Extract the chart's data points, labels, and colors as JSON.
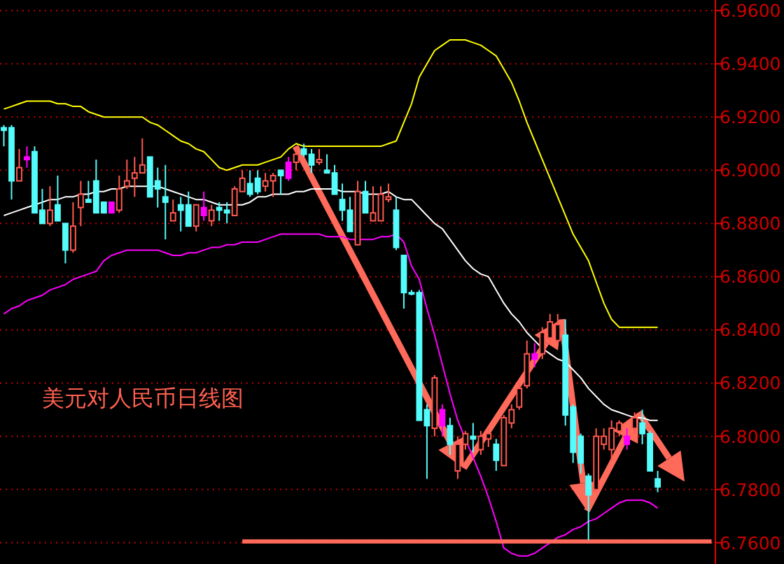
{
  "chart_data": {
    "type": "candlestick",
    "annotations": [
      "美元对人民币日线图"
    ],
    "categories": [
      null,
      null,
      null,
      null,
      null,
      null,
      null,
      null,
      null,
      null,
      null,
      null,
      null,
      null,
      null,
      null,
      null,
      null,
      null,
      null,
      null,
      null,
      null,
      null,
      null,
      null,
      null,
      null,
      null,
      null,
      null,
      null,
      null,
      null,
      null,
      null,
      null,
      null,
      null,
      null,
      null,
      null,
      null,
      null,
      null,
      null,
      null,
      null,
      null,
      null,
      null,
      null,
      null,
      null,
      null,
      null,
      null,
      null,
      null,
      null,
      null,
      null,
      null,
      null,
      null,
      null,
      null,
      null,
      null,
      null,
      null,
      null,
      null,
      null,
      null,
      null,
      null,
      null,
      null,
      null,
      null,
      null,
      null,
      null,
      null,
      null,
      null,
      null,
      null,
      null,
      null,
      null,
      null
    ],
    "ohlc": [
      [
        6.916,
        6.917,
        6.909,
        6.915
      ],
      [
        6.916,
        6.917,
        6.889,
        6.896
      ],
      [
        6.896,
        6.908,
        6.896,
        6.901
      ],
      [
        6.905,
        6.909,
        6.901,
        6.904
      ],
      [
        6.907,
        6.909,
        6.884,
        6.884
      ],
      [
        6.885,
        6.893,
        6.88,
        6.88
      ],
      [
        6.88,
        6.894,
        6.879,
        6.885
      ],
      [
        6.887,
        6.898,
        6.881,
        6.881
      ],
      [
        6.88,
        6.88,
        6.865,
        6.87
      ],
      [
        6.87,
        6.888,
        6.869,
        6.879
      ],
      [
        6.886,
        6.896,
        6.879,
        6.891
      ],
      [
        6.889,
        6.896,
        6.888,
        6.888
      ],
      [
        6.896,
        6.904,
        6.884,
        6.884
      ],
      [
        6.888,
        6.888,
        6.884,
        6.884
      ],
      [
        6.888,
        6.888,
        6.884,
        6.884
      ],
      [
        6.885,
        6.898,
        6.884,
        6.893
      ],
      [
        6.894,
        6.904,
        6.893,
        6.896
      ],
      [
        6.897,
        6.905,
        6.89,
        6.899
      ],
      [
        6.899,
        6.912,
        6.899,
        6.902
      ],
      [
        6.905,
        6.905,
        6.89,
        6.89
      ],
      [
        6.896,
        6.901,
        6.886,
        6.893
      ],
      [
        6.89,
        6.902,
        6.874,
        6.888
      ],
      [
        6.881,
        6.889,
        6.881,
        6.884
      ],
      [
        6.887,
        6.89,
        6.877,
        6.885
      ],
      [
        6.887,
        6.892,
        6.879,
        6.879
      ],
      [
        6.879,
        6.887,
        6.877,
        6.887
      ],
      [
        6.886,
        6.892,
        6.881,
        6.883
      ],
      [
        6.881,
        6.887,
        6.879,
        6.885
      ],
      [
        6.886,
        6.888,
        6.881,
        6.885
      ],
      [
        6.885,
        6.888,
        6.88,
        6.884
      ],
      [
        6.883,
        6.894,
        6.883,
        6.893
      ],
      [
        6.892,
        6.9,
        6.892,
        6.897
      ],
      [
        6.895,
        6.9,
        6.89,
        6.891
      ],
      [
        6.897,
        6.9,
        6.891,
        6.892
      ],
      [
        6.894,
        6.899,
        6.892,
        6.896
      ],
      [
        6.896,
        6.899,
        6.89,
        6.898
      ],
      [
        6.9,
        6.9,
        6.891,
        6.898
      ],
      [
        6.903,
        6.905,
        6.896,
        6.897
      ],
      [
        6.903,
        6.908,
        6.9,
        6.906
      ],
      [
        6.908,
        6.91,
        6.905,
        6.906
      ],
      [
        6.906,
        6.908,
        6.899,
        6.902
      ],
      [
        6.903,
        6.908,
        6.902,
        6.904
      ],
      [
        6.9,
        6.906,
        6.899,
        6.899
      ],
      [
        6.899,
        6.902,
        6.891,
        6.891
      ],
      [
        6.889,
        6.895,
        6.881,
        6.885
      ],
      [
        6.885,
        6.89,
        6.877,
        6.877
      ],
      [
        6.872,
        6.896,
        6.872,
        6.892
      ],
      [
        6.892,
        6.896,
        6.884,
        6.884
      ],
      [
        6.881,
        6.894,
        6.881,
        6.884
      ],
      [
        6.881,
        6.894,
        6.881,
        6.891
      ],
      [
        6.889,
        6.895,
        6.888,
        6.89
      ],
      [
        6.885,
        6.89,
        6.87,
        6.871
      ],
      [
        6.868,
        6.868,
        6.848,
        6.854
      ],
      [
        6.854,
        6.855,
        6.853,
        6.854
      ],
      [
        6.854,
        6.855,
        6.806,
        6.806
      ],
      [
        6.81,
        6.812,
        6.784,
        6.804
      ],
      [
        6.803,
        6.823,
        6.8,
        6.822
      ],
      [
        6.81,
        6.812,
        6.8,
        6.804
      ],
      [
        6.804,
        6.807,
        6.793,
        6.797
      ],
      [
        6.787,
        6.8,
        6.784,
        6.797
      ],
      [
        6.797,
        6.802,
        6.795,
        6.801
      ],
      [
        6.8,
        6.805,
        6.794,
        6.799
      ],
      [
        6.795,
        6.802,
        6.793,
        6.8
      ],
      [
        6.799,
        6.803,
        6.796,
        6.801
      ],
      [
        6.797,
        6.799,
        6.787,
        6.791
      ],
      [
        6.789,
        6.808,
        6.789,
        6.807
      ],
      [
        6.805,
        6.812,
        6.803,
        6.81
      ],
      [
        6.811,
        6.82,
        6.81,
        6.818
      ],
      [
        6.819,
        6.836,
        6.818,
        6.831
      ],
      [
        6.831,
        6.835,
        6.826,
        6.829
      ],
      [
        6.831,
        6.841,
        6.829,
        6.839
      ],
      [
        6.837,
        6.846,
        6.835,
        6.843
      ],
      [
        6.836,
        6.846,
        6.835,
        6.842
      ],
      [
        6.838,
        6.844,
        6.804,
        6.808
      ],
      [
        6.811,
        6.812,
        6.79,
        6.794
      ],
      [
        6.8,
        6.801,
        6.786,
        6.79
      ],
      [
        6.785,
        6.786,
        6.761,
        6.778
      ],
      [
        6.78,
        6.803,
        6.779,
        6.8
      ],
      [
        6.797,
        6.803,
        6.795,
        6.8
      ],
      [
        6.795,
        6.806,
        6.791,
        6.803
      ],
      [
        6.802,
        6.806,
        6.8,
        6.805
      ],
      [
        6.8,
        6.803,
        6.795,
        6.797
      ],
      [
        6.803,
        6.809,
        6.801,
        6.807
      ],
      [
        6.805,
        6.81,
        6.797,
        6.801
      ],
      [
        6.801,
        6.802,
        6.787,
        6.787
      ],
      [
        6.784,
        6.787,
        6.779,
        6.781
      ],
      null,
      null,
      null,
      null,
      null,
      null,
      null
    ],
    "colors": [
      "#54fcfc",
      "#54fcfc",
      "#ff5a50",
      "#ff00ff",
      "#54fcfc",
      "#54fcfc",
      "#ff5a50",
      "#54fcfc",
      "#54fcfc",
      "#ff5a50",
      "#ff5a50",
      "#54fcfc",
      "#54fcfc",
      "#54fcfc",
      "#ff00ff",
      "#ff5a50",
      "#ff5a50",
      "#ff5a50",
      "#ff5a50",
      "#54fcfc",
      "#54fcfc",
      "#54fcfc",
      "#ff5a50",
      "#54fcfc",
      "#54fcfc",
      "#ff5a50",
      "#ff00ff",
      "#ff5a50",
      "#54fcfc",
      "#54fcfc",
      "#ff5a50",
      "#ff5a50",
      "#54fcfc",
      "#54fcfc",
      "#ff5a50",
      "#ff5a50",
      "#54fcfc",
      "#ff00ff",
      "#ff5a50",
      "#54fcfc",
      "#54fcfc",
      "#ff5a50",
      "#54fcfc",
      "#54fcfc",
      "#54fcfc",
      "#54fcfc",
      "#ff5a50",
      "#54fcfc",
      "#ff5a50",
      "#ff5a50",
      "#ff5a50",
      "#54fcfc",
      "#54fcfc",
      "#54fcfc",
      "#54fcfc",
      "#54fcfc",
      "#ff5a50",
      "#ff00ff",
      "#54fcfc",
      "#ff5a50",
      "#ff5a50",
      "#54fcfc",
      "#ff5a50",
      "#ff5a50",
      "#54fcfc",
      "#ff5a50",
      "#ff5a50",
      "#ff5a50",
      "#ff5a50",
      "#ff00ff",
      "#ff5a50",
      "#ff5a50",
      "#ff5a50",
      "#54fcfc",
      "#54fcfc",
      "#54fcfc",
      "#54fcfc",
      "#ff5a50",
      "#ff5a50",
      "#ff5a50",
      "#ff5a50",
      "#ff00ff",
      "#ff5a50",
      "#54fcfc",
      "#54fcfc",
      "#54fcfc",
      null,
      null,
      null,
      null,
      null,
      null,
      null
    ],
    "series": [
      {
        "type": "line",
        "color": "#ffff00",
        "values": [
          6.923,
          6.924,
          6.925,
          6.926,
          6.926,
          6.926,
          6.926,
          6.925,
          6.925,
          6.924,
          6.924,
          6.922,
          6.921,
          6.92,
          6.92,
          6.92,
          6.92,
          6.92,
          6.92,
          6.918,
          6.917,
          6.915,
          6.913,
          6.911,
          6.91,
          6.908,
          6.907,
          6.904,
          6.901,
          6.9,
          6.901,
          6.902,
          6.902,
          6.902,
          6.903,
          6.904,
          6.905,
          6.908,
          6.91,
          6.909,
          6.909,
          6.909,
          6.909,
          6.909,
          6.909,
          6.909,
          6.909,
          6.909,
          6.909,
          6.909,
          6.91,
          6.911,
          6.918,
          6.925,
          6.935,
          6.94,
          6.945,
          6.947,
          6.949,
          6.949,
          6.949,
          6.948,
          6.947,
          6.945,
          6.943,
          6.938,
          6.933,
          6.926,
          6.918,
          6.911,
          6.904,
          6.897,
          6.89,
          6.883,
          6.876,
          6.871,
          6.866,
          6.858,
          6.85,
          6.844,
          6.841,
          6.841,
          6.841,
          6.841,
          6.841,
          6.841,
          null,
          null,
          null,
          null,
          null,
          null,
          null
        ]
      },
      {
        "type": "line",
        "color": "#ffffff",
        "values": [
          6.883,
          6.884,
          6.885,
          6.886,
          6.887,
          6.888,
          6.889,
          6.889,
          6.89,
          6.89,
          6.891,
          6.891,
          6.892,
          6.892,
          6.893,
          6.893,
          6.894,
          6.894,
          6.894,
          6.894,
          6.894,
          6.893,
          6.892,
          6.891,
          6.89,
          6.889,
          6.889,
          6.888,
          6.887,
          6.887,
          6.887,
          6.887,
          6.888,
          6.89,
          6.89,
          6.891,
          6.891,
          6.891,
          6.892,
          6.892,
          6.893,
          6.893,
          6.893,
          6.893,
          6.892,
          6.892,
          6.892,
          6.891,
          6.891,
          6.891,
          6.892,
          6.89,
          6.889,
          6.889,
          6.886,
          6.883,
          6.88,
          6.878,
          6.874,
          6.87,
          6.866,
          6.863,
          6.861,
          6.86,
          6.855,
          6.85,
          6.846,
          6.843,
          6.839,
          6.836,
          6.833,
          6.831,
          6.829,
          6.828,
          6.825,
          6.822,
          6.818,
          6.815,
          6.812,
          6.81,
          6.809,
          6.808,
          6.807,
          6.807,
          6.806,
          6.806,
          null,
          null,
          null,
          null,
          null,
          null,
          null
        ]
      },
      {
        "type": "line",
        "color": "#ff00ff",
        "values": [
          6.846,
          6.848,
          6.849,
          6.851,
          6.852,
          6.853,
          6.855,
          6.856,
          6.857,
          6.859,
          6.86,
          6.861,
          6.862,
          6.866,
          6.868,
          6.869,
          6.87,
          6.87,
          6.87,
          6.87,
          6.87,
          6.869,
          6.868,
          6.868,
          6.869,
          6.869,
          6.87,
          6.871,
          6.871,
          6.872,
          6.872,
          6.873,
          6.873,
          6.873,
          6.874,
          6.875,
          6.876,
          6.876,
          6.876,
          6.876,
          6.876,
          6.876,
          6.875,
          6.875,
          6.875,
          6.874,
          6.874,
          6.874,
          6.874,
          6.875,
          6.875,
          6.876,
          6.873,
          6.864,
          6.859,
          6.848,
          6.838,
          6.827,
          6.816,
          6.806,
          6.799,
          6.792,
          6.785,
          6.777,
          6.768,
          6.758,
          6.756,
          6.755,
          6.755,
          6.756,
          6.758,
          6.76,
          6.762,
          6.763,
          6.765,
          6.766,
          6.768,
          6.769,
          6.771,
          6.773,
          6.775,
          6.776,
          6.776,
          6.776,
          6.775,
          6.773,
          null,
          null,
          null,
          null,
          null,
          null,
          null
        ]
      },
      {
        "type": "line",
        "color": "#ff6a5a",
        "values": [
          null,
          null,
          null,
          null,
          null,
          null,
          null,
          null,
          null,
          null,
          null,
          null,
          null,
          null,
          null,
          null,
          null,
          null,
          null,
          null,
          null,
          null,
          null,
          null,
          null,
          null,
          null,
          null,
          null,
          null,
          null,
          6.7605,
          6.7605,
          6.7605,
          6.7605,
          6.7605,
          6.7605,
          6.7605,
          6.7605,
          6.7605,
          6.7605,
          6.7605,
          6.7605,
          6.7605,
          6.7605,
          6.7605,
          6.7605,
          6.7605,
          6.7605,
          6.7605,
          6.7605,
          6.7605,
          6.7605,
          6.7605,
          6.7605,
          6.7605,
          6.7605,
          6.7605,
          6.7605,
          6.7605,
          6.7605,
          6.7605,
          6.7605,
          6.7605,
          6.7605,
          6.7605,
          6.7605,
          6.7605,
          6.7605,
          6.7605,
          6.7605,
          6.7605,
          6.7605,
          6.7605,
          6.7605,
          6.7605,
          6.7605,
          6.7605,
          6.7605,
          6.7605,
          6.7605,
          6.7605,
          6.7605,
          6.7605,
          6.7605,
          6.7605,
          6.7605,
          6.7605,
          6.7605,
          6.7605,
          6.7605,
          6.7605,
          6.7605
        ]
      }
    ],
    "ylim": [
      6.752,
      6.964
    ],
    "yticks": [
      {
        "value": 6.96,
        "label": "6.9600"
      },
      {
        "value": 6.94,
        "label": "6.9400"
      },
      {
        "value": 6.92,
        "label": "6.9200"
      },
      {
        "value": 6.9,
        "label": "6.9000"
      },
      {
        "value": 6.88,
        "label": "6.8800"
      },
      {
        "value": 6.86,
        "label": "6.8600"
      },
      {
        "value": 6.84,
        "label": "6.8400"
      },
      {
        "value": 6.82,
        "label": "6.8200"
      },
      {
        "value": 6.8,
        "label": "6.8000"
      },
      {
        "value": 6.78,
        "label": "6.7800"
      },
      {
        "value": 6.76,
        "label": "6.7600"
      }
    ],
    "grid": "y"
  }
}
